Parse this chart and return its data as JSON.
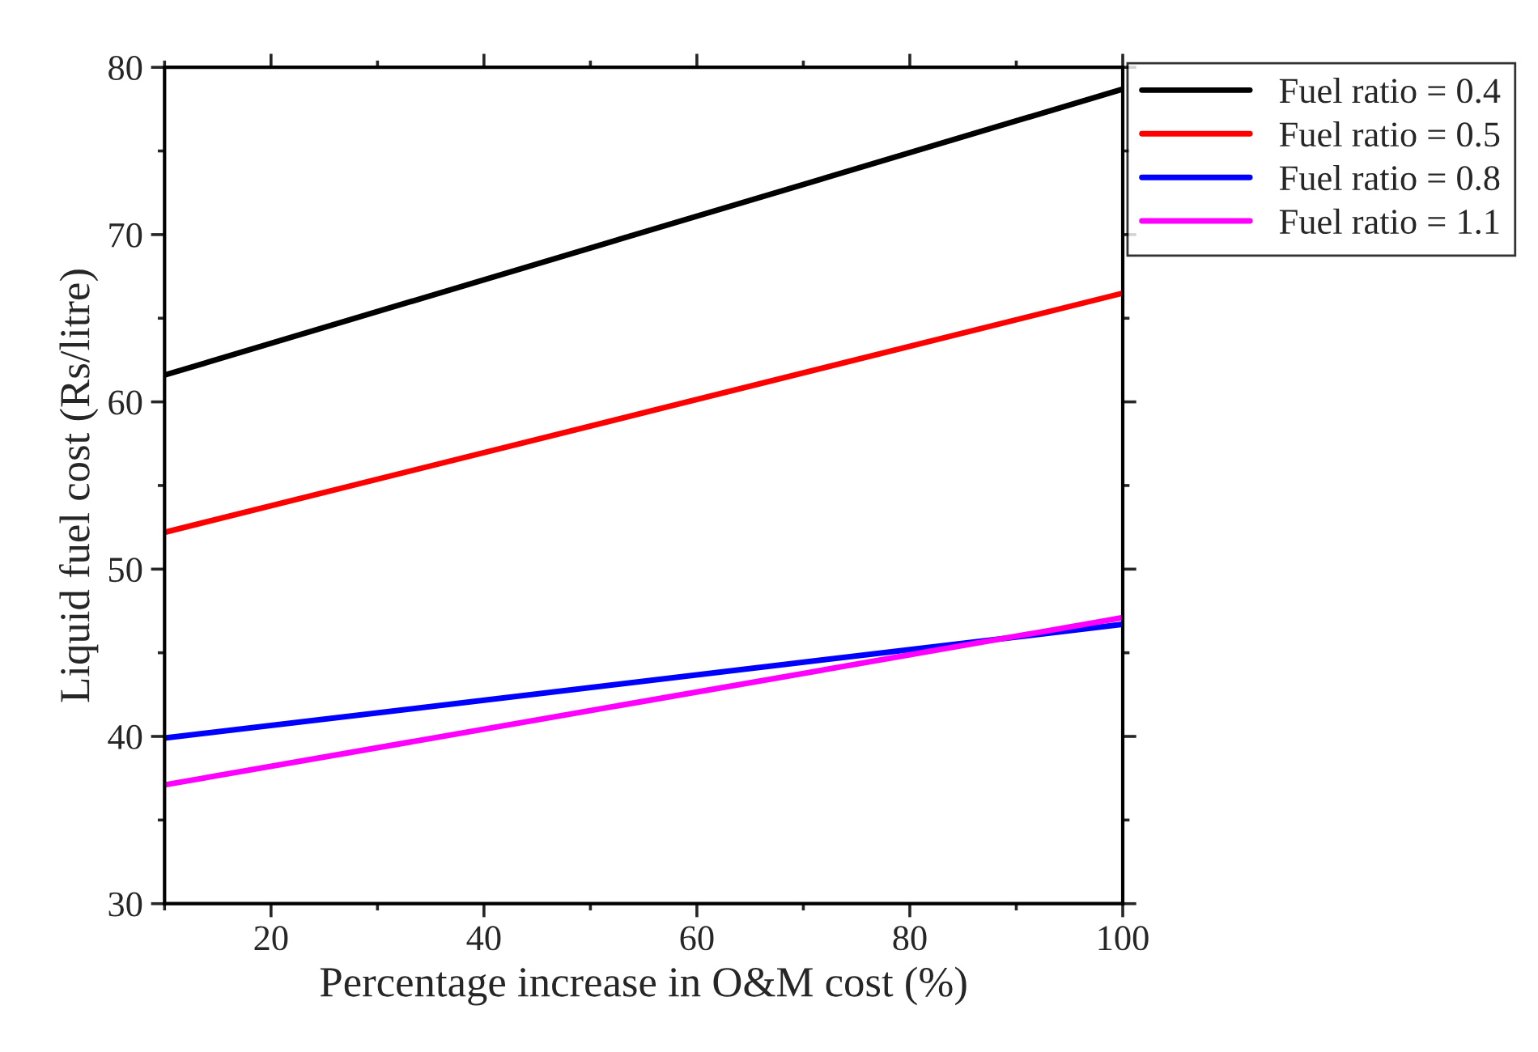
{
  "chart_data": {
    "type": "line",
    "xlabel": "Percentage increase in O&M cost (%)",
    "ylabel": "Liquid fuel cost (Rs/litre)",
    "x": [
      10,
      100
    ],
    "xlim": [
      10,
      100
    ],
    "xticks": [
      20,
      40,
      60,
      80,
      100
    ],
    "ylim": [
      30,
      80
    ],
    "yticks": [
      30,
      40,
      50,
      60,
      70,
      80
    ],
    "legend": "top right",
    "grid": false,
    "marker": "none",
    "line_style": "solid",
    "series": [
      {
        "name": "Fuel ratio = 0.4",
        "color": "#000000",
        "values": [
          61.6,
          78.7
        ]
      },
      {
        "name": "Fuel ratio = 0.5",
        "color": "#ff0000",
        "values": [
          52.2,
          66.5
        ]
      },
      {
        "name": "Fuel ratio = 0.8",
        "color": "#0000ff",
        "values": [
          39.9,
          46.7
        ]
      },
      {
        "name": "Fuel ratio = 1.1",
        "color": "#ff00ff",
        "values": [
          37.1,
          47.1
        ]
      }
    ]
  }
}
